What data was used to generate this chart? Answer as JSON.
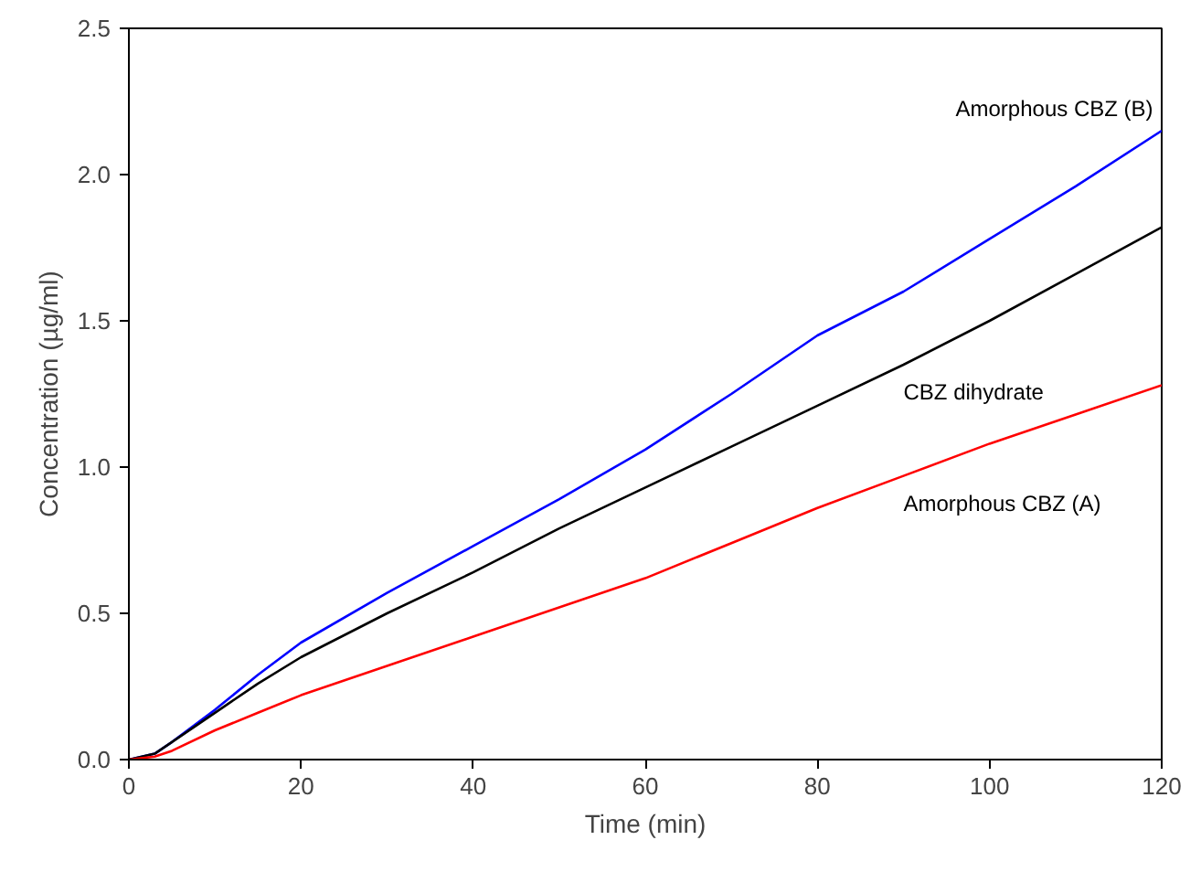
{
  "chart_data": {
    "type": "line",
    "xlabel": "Time (min)",
    "ylabel": "Concentration (µg/ml)",
    "xlim": [
      0,
      120
    ],
    "ylim": [
      0,
      2.5
    ],
    "xticks": [
      0,
      20,
      40,
      60,
      80,
      100,
      120
    ],
    "yticks": [
      {
        "value": 0,
        "label": "0.0"
      },
      {
        "value": 0.5,
        "label": "0.5"
      },
      {
        "value": 1,
        "label": "1.0"
      },
      {
        "value": 1.5,
        "label": "1.5"
      },
      {
        "value": 2,
        "label": "2.0"
      },
      {
        "value": 2.5,
        "label": "2.5"
      }
    ],
    "grid": false,
    "legend": false,
    "marker": "none",
    "line_style": "solid",
    "series": [
      {
        "name": "Amorphous CBZ (B)",
        "color": "#0000ff",
        "x": [
          0,
          3,
          5,
          10,
          15,
          20,
          30,
          40,
          50,
          60,
          70,
          80,
          90,
          100,
          110,
          120
        ],
        "values": [
          0,
          0.02,
          0.06,
          0.17,
          0.29,
          0.4,
          0.57,
          0.73,
          0.89,
          1.06,
          1.25,
          1.45,
          1.6,
          1.78,
          1.96,
          2.15
        ]
      },
      {
        "name": "CBZ dihydrate",
        "color": "#000000",
        "x": [
          0,
          3,
          5,
          10,
          15,
          20,
          30,
          40,
          50,
          60,
          70,
          80,
          90,
          100,
          110,
          120
        ],
        "values": [
          0,
          0.02,
          0.06,
          0.16,
          0.26,
          0.35,
          0.5,
          0.64,
          0.79,
          0.93,
          1.07,
          1.21,
          1.35,
          1.5,
          1.66,
          1.82
        ]
      },
      {
        "name": "Amorphous CBZ (A)",
        "color": "#ff0000",
        "x": [
          0,
          3,
          5,
          10,
          15,
          20,
          30,
          40,
          50,
          60,
          70,
          80,
          90,
          100,
          110,
          120
        ],
        "values": [
          0,
          0.01,
          0.03,
          0.1,
          0.16,
          0.22,
          0.32,
          0.42,
          0.52,
          0.62,
          0.74,
          0.86,
          0.97,
          1.08,
          1.18,
          1.28
        ]
      }
    ]
  }
}
